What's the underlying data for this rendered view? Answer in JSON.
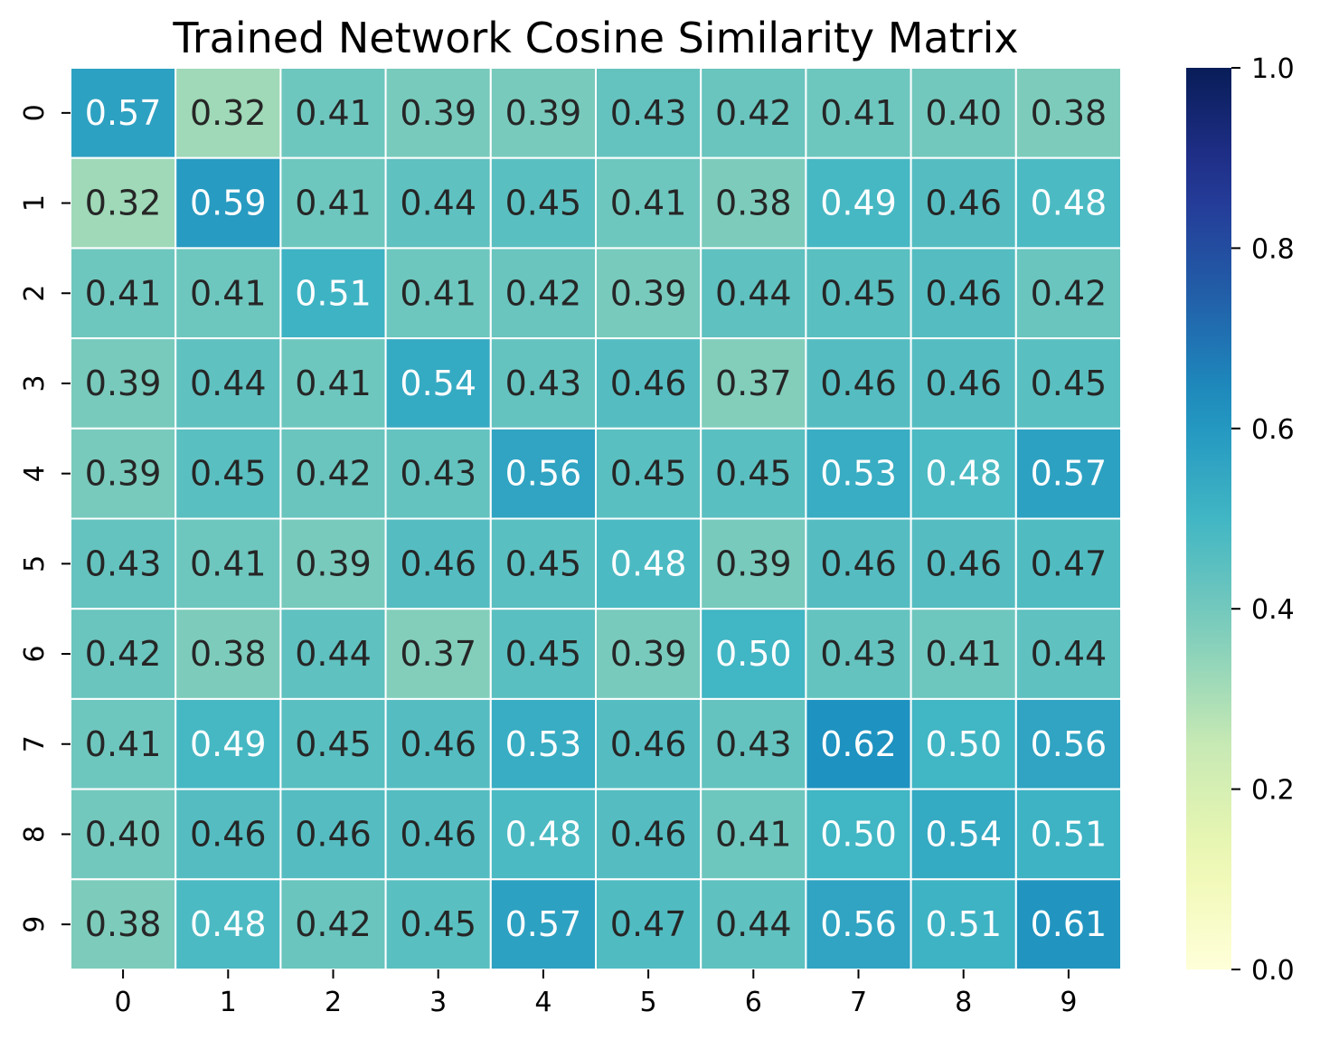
{
  "chart_data": {
    "type": "heatmap",
    "title": "Trained Network Cosine Similarity Matrix",
    "x_categories": [
      "0",
      "1",
      "2",
      "3",
      "4",
      "5",
      "6",
      "7",
      "8",
      "9"
    ],
    "y_categories": [
      "0",
      "1",
      "2",
      "3",
      "4",
      "5",
      "6",
      "7",
      "8",
      "9"
    ],
    "values": [
      [
        0.57,
        0.32,
        0.41,
        0.39,
        0.39,
        0.43,
        0.42,
        0.41,
        0.4,
        0.38
      ],
      [
        0.32,
        0.59,
        0.41,
        0.44,
        0.45,
        0.41,
        0.38,
        0.49,
        0.46,
        0.48
      ],
      [
        0.41,
        0.41,
        0.51,
        0.41,
        0.42,
        0.39,
        0.44,
        0.45,
        0.46,
        0.42
      ],
      [
        0.39,
        0.44,
        0.41,
        0.54,
        0.43,
        0.46,
        0.37,
        0.46,
        0.46,
        0.45
      ],
      [
        0.39,
        0.45,
        0.42,
        0.43,
        0.56,
        0.45,
        0.45,
        0.53,
        0.48,
        0.57
      ],
      [
        0.43,
        0.41,
        0.39,
        0.46,
        0.45,
        0.48,
        0.39,
        0.46,
        0.46,
        0.47
      ],
      [
        0.42,
        0.38,
        0.44,
        0.37,
        0.45,
        0.39,
        0.5,
        0.43,
        0.41,
        0.44
      ],
      [
        0.41,
        0.49,
        0.45,
        0.46,
        0.53,
        0.46,
        0.43,
        0.62,
        0.5,
        0.56
      ],
      [
        0.4,
        0.46,
        0.46,
        0.46,
        0.48,
        0.46,
        0.41,
        0.5,
        0.54,
        0.51
      ],
      [
        0.38,
        0.48,
        0.42,
        0.45,
        0.57,
        0.47,
        0.44,
        0.56,
        0.51,
        0.61
      ]
    ],
    "cell_labels": [
      [
        "0.57",
        "0.32",
        "0.41",
        "0.39",
        "0.39",
        "0.43",
        "0.42",
        "0.41",
        "0.40",
        "0.38"
      ],
      [
        "0.32",
        "0.59",
        "0.41",
        "0.44",
        "0.45",
        "0.41",
        "0.38",
        "0.49",
        "0.46",
        "0.48"
      ],
      [
        "0.41",
        "0.41",
        "0.51",
        "0.41",
        "0.42",
        "0.39",
        "0.44",
        "0.45",
        "0.46",
        "0.42"
      ],
      [
        "0.39",
        "0.44",
        "0.41",
        "0.54",
        "0.43",
        "0.46",
        "0.37",
        "0.46",
        "0.46",
        "0.45"
      ],
      [
        "0.39",
        "0.45",
        "0.42",
        "0.43",
        "0.56",
        "0.45",
        "0.45",
        "0.53",
        "0.48",
        "0.57"
      ],
      [
        "0.43",
        "0.41",
        "0.39",
        "0.46",
        "0.45",
        "0.48",
        "0.39",
        "0.46",
        "0.46",
        "0.47"
      ],
      [
        "0.42",
        "0.38",
        "0.44",
        "0.37",
        "0.45",
        "0.39",
        "0.50",
        "0.43",
        "0.41",
        "0.44"
      ],
      [
        "0.41",
        "0.49",
        "0.45",
        "0.46",
        "0.53",
        "0.46",
        "0.43",
        "0.62",
        "0.50",
        "0.56"
      ],
      [
        "0.40",
        "0.46",
        "0.46",
        "0.46",
        "0.48",
        "0.46",
        "0.41",
        "0.50",
        "0.54",
        "0.51"
      ],
      [
        "0.38",
        "0.48",
        "0.42",
        "0.45",
        "0.57",
        "0.47",
        "0.44",
        "0.56",
        "0.51",
        "0.61"
      ]
    ],
    "colormap": "YlGnBu",
    "vmin": 0.0,
    "vmax": 1.0,
    "colorbar_ticks": [
      "0.0",
      "0.2",
      "0.4",
      "0.6",
      "0.8",
      "1.0"
    ],
    "label_colors": {
      "dark": "#262626",
      "light": "#ffffff"
    },
    "cell_border_color": "#ffffff",
    "legend_position": "right"
  }
}
